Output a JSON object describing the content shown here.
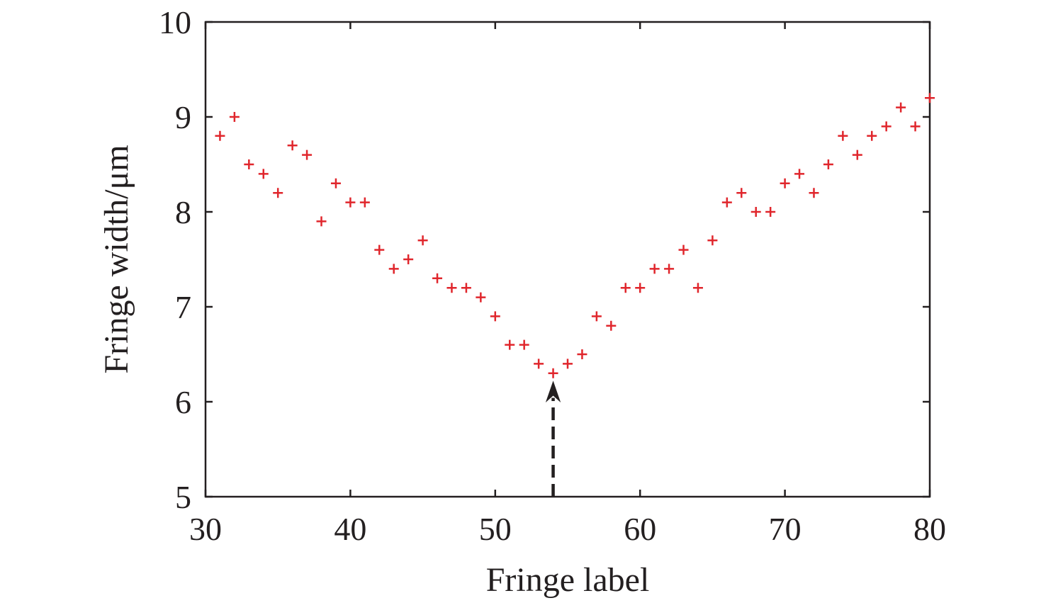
{
  "chart_data": {
    "type": "scatter",
    "title": "",
    "xlabel": "Fringe label",
    "ylabel": "Fringe width/μm",
    "xlim": [
      30,
      80
    ],
    "ylim": [
      5,
      10
    ],
    "xticks": [
      30,
      40,
      50,
      60,
      70,
      80
    ],
    "yticks": [
      5,
      6,
      7,
      8,
      9,
      10
    ],
    "grid": false,
    "legend": "none",
    "marker": "plus",
    "marker_color": "#e0262c",
    "series": [
      {
        "x": [
          31,
          32,
          33,
          34,
          35,
          36,
          37,
          38,
          39,
          40,
          41,
          42,
          43,
          44,
          45,
          46,
          47,
          48,
          49,
          50,
          51,
          52,
          53,
          54,
          55,
          56,
          57,
          58,
          59,
          60,
          61,
          62,
          63,
          64,
          65,
          66,
          67,
          68,
          69,
          70,
          71,
          72,
          73,
          74,
          75,
          76,
          77,
          78,
          79,
          80
        ],
        "y": [
          8.8,
          9.0,
          8.5,
          8.4,
          8.2,
          8.7,
          8.6,
          7.9,
          8.3,
          8.1,
          8.1,
          7.6,
          7.4,
          7.5,
          7.7,
          7.3,
          7.2,
          7.2,
          7.1,
          6.9,
          6.6,
          6.6,
          6.4,
          6.3,
          6.4,
          6.5,
          6.9,
          6.8,
          7.2,
          7.2,
          7.4,
          7.4,
          7.6,
          7.2,
          7.7,
          8.1,
          8.2,
          8.0,
          8.0,
          8.3,
          8.4,
          8.2,
          8.5,
          8.8,
          8.6,
          8.8,
          8.9,
          9.1,
          8.9,
          9.2
        ]
      }
    ],
    "annotations": [
      {
        "type": "dashed-arrow",
        "x": 54,
        "y_from": 5,
        "y_to": 6.25,
        "color": "#231f20"
      }
    ]
  }
}
